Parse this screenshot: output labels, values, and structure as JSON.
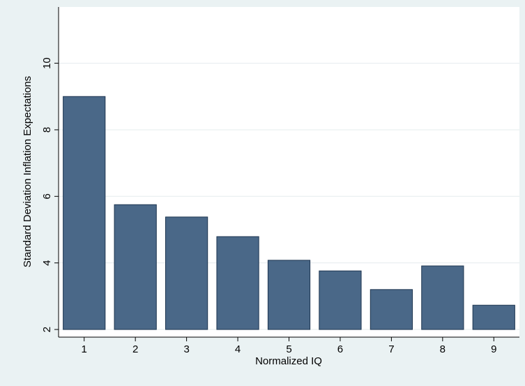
{
  "chart_data": {
    "type": "bar",
    "x_label": "Normalized IQ",
    "y_label": "Standard Deviation Inflation Expectations",
    "categories": [
      "1",
      "2",
      "3",
      "4",
      "5",
      "6",
      "7",
      "8",
      "9"
    ],
    "values": [
      9.0,
      5.75,
      5.38,
      4.79,
      4.08,
      3.76,
      3.2,
      3.91,
      2.73
    ],
    "color": "#4a6888",
    "bar_base": 2,
    "ylim": [
      1.77,
      11.69
    ],
    "yticks": [
      2,
      4,
      6,
      8,
      10
    ],
    "grid": true
  }
}
